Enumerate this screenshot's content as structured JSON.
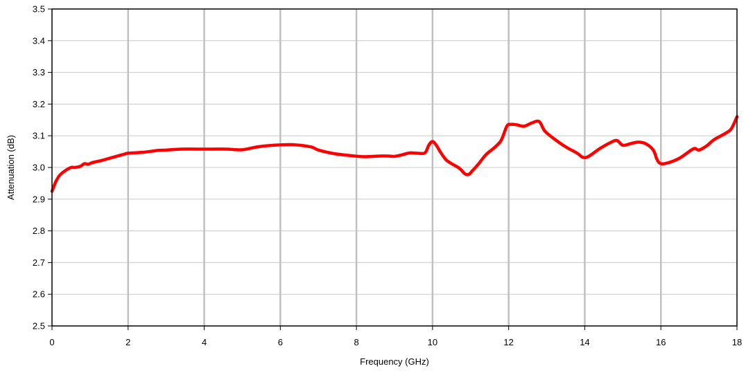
{
  "chart_data": {
    "type": "line",
    "title": "",
    "xlabel": "Frequency (GHz)",
    "ylabel": "Attenuation (dB)",
    "xlim": [
      0,
      18
    ],
    "ylim": [
      2.5,
      3.5
    ],
    "x_ticks": [
      "0",
      "2",
      "4",
      "6",
      "8",
      "10",
      "12",
      "14",
      "16",
      "18"
    ],
    "y_ticks": [
      "2.5",
      "2.6",
      "2.7",
      "2.8",
      "2.9",
      "3.0",
      "3.1",
      "3.2",
      "3.3",
      "3.4",
      "3.5"
    ],
    "grid": {
      "vertical": true,
      "horizontal": true
    },
    "legend": "none",
    "colors": {
      "series": "#ff0000",
      "vertical_grid": "#c0c0c0",
      "horizontal_grid": "#c8c8c8",
      "frame": "#000000"
    },
    "series": [
      {
        "x": [
          0,
          0.1,
          0.2,
          0.35,
          0.5,
          0.6,
          0.75,
          0.85,
          0.95,
          1.05,
          1.3,
          1.6,
          1.9,
          2.0,
          2.4,
          2.8,
          3.0,
          3.4,
          3.8,
          4.2,
          4.6,
          5.0,
          5.4,
          5.8,
          6.3,
          6.8,
          7.0,
          7.4,
          7.8,
          8.2,
          8.6,
          8.85,
          9.0,
          9.2,
          9.4,
          9.6,
          9.8,
          9.9,
          10.0,
          10.1,
          10.2,
          10.35,
          10.5,
          10.7,
          10.85,
          10.95,
          11.05,
          11.2,
          11.4,
          11.6,
          11.8,
          11.95,
          12.05,
          12.2,
          12.4,
          12.6,
          12.8,
          12.95,
          13.2,
          13.5,
          13.8,
          13.95,
          14.1,
          14.4,
          14.7,
          14.85,
          15.0,
          15.2,
          15.4,
          15.6,
          15.8,
          15.9,
          16.0,
          16.2,
          16.5,
          16.8,
          16.9,
          17.0,
          17.2,
          17.4,
          17.7,
          17.85,
          18.0
        ],
        "y": [
          2.925,
          2.955,
          2.975,
          2.99,
          3.0,
          3.0,
          3.004,
          3.012,
          3.01,
          3.015,
          3.022,
          3.032,
          3.042,
          3.045,
          3.048,
          3.054,
          3.055,
          3.058,
          3.058,
          3.058,
          3.058,
          3.056,
          3.065,
          3.07,
          3.072,
          3.065,
          3.055,
          3.044,
          3.038,
          3.034,
          3.036,
          3.036,
          3.035,
          3.04,
          3.046,
          3.045,
          3.046,
          3.07,
          3.082,
          3.07,
          3.05,
          3.025,
          3.012,
          2.998,
          2.98,
          2.978,
          2.99,
          3.01,
          3.04,
          3.06,
          3.085,
          3.13,
          3.136,
          3.135,
          3.13,
          3.14,
          3.145,
          3.115,
          3.09,
          3.065,
          3.045,
          3.032,
          3.035,
          3.06,
          3.08,
          3.085,
          3.07,
          3.075,
          3.08,
          3.075,
          3.055,
          3.025,
          3.012,
          3.015,
          3.03,
          3.055,
          3.06,
          3.055,
          3.068,
          3.088,
          3.108,
          3.122,
          3.16
        ]
      }
    ]
  }
}
